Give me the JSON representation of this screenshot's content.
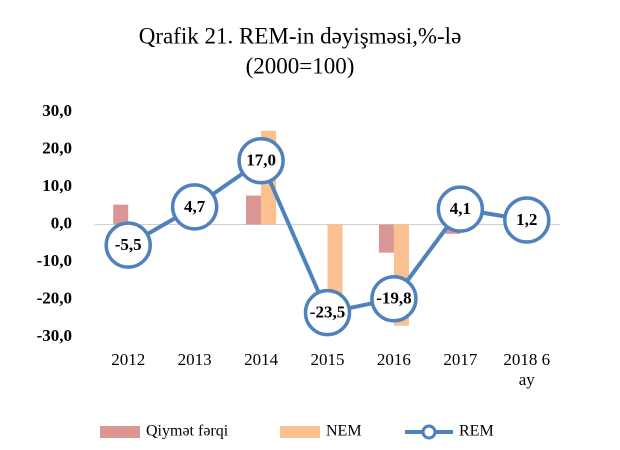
{
  "chart_data": {
    "type": "bar-line",
    "title": "Qrafik 21. REM-in dəyişməsi,%-lə",
    "subtitle": "(2000=100)",
    "categories": [
      "2012",
      "2013",
      "2014",
      "2015",
      "2016",
      "2017",
      "2018 6 ay"
    ],
    "series": [
      {
        "name": "Qiymət fərqi",
        "type": "bar",
        "color": "#d99694",
        "values": [
          5.3,
          0,
          7.7,
          0,
          -7.5,
          -2.5,
          0
        ]
      },
      {
        "name": "NEM",
        "type": "bar",
        "color": "#fac090",
        "values": [
          0,
          0,
          25,
          -23,
          -27,
          -1,
          0
        ]
      },
      {
        "name": "REM",
        "type": "line",
        "color": "#4f81bd",
        "values": [
          -5.5,
          4.7,
          17.0,
          -23.5,
          -19.8,
          4.1,
          1.2
        ],
        "value_labels": [
          "-5,5",
          "4,7",
          "17,0",
          "-23,5",
          "-19,8",
          "4,1",
          "1,2"
        ]
      }
    ],
    "ylim": [
      -30,
      30
    ],
    "yticks": [
      {
        "value": -30,
        "label": "-30,0"
      },
      {
        "value": -20,
        "label": "-20,0"
      },
      {
        "value": -10,
        "label": "-10,0"
      },
      {
        "value": 0,
        "label": "0,0"
      },
      {
        "value": 10,
        "label": "10,0"
      },
      {
        "value": 20,
        "label": "20,0"
      },
      {
        "value": 30,
        "label": "30,0"
      }
    ],
    "legend": "bottom"
  }
}
